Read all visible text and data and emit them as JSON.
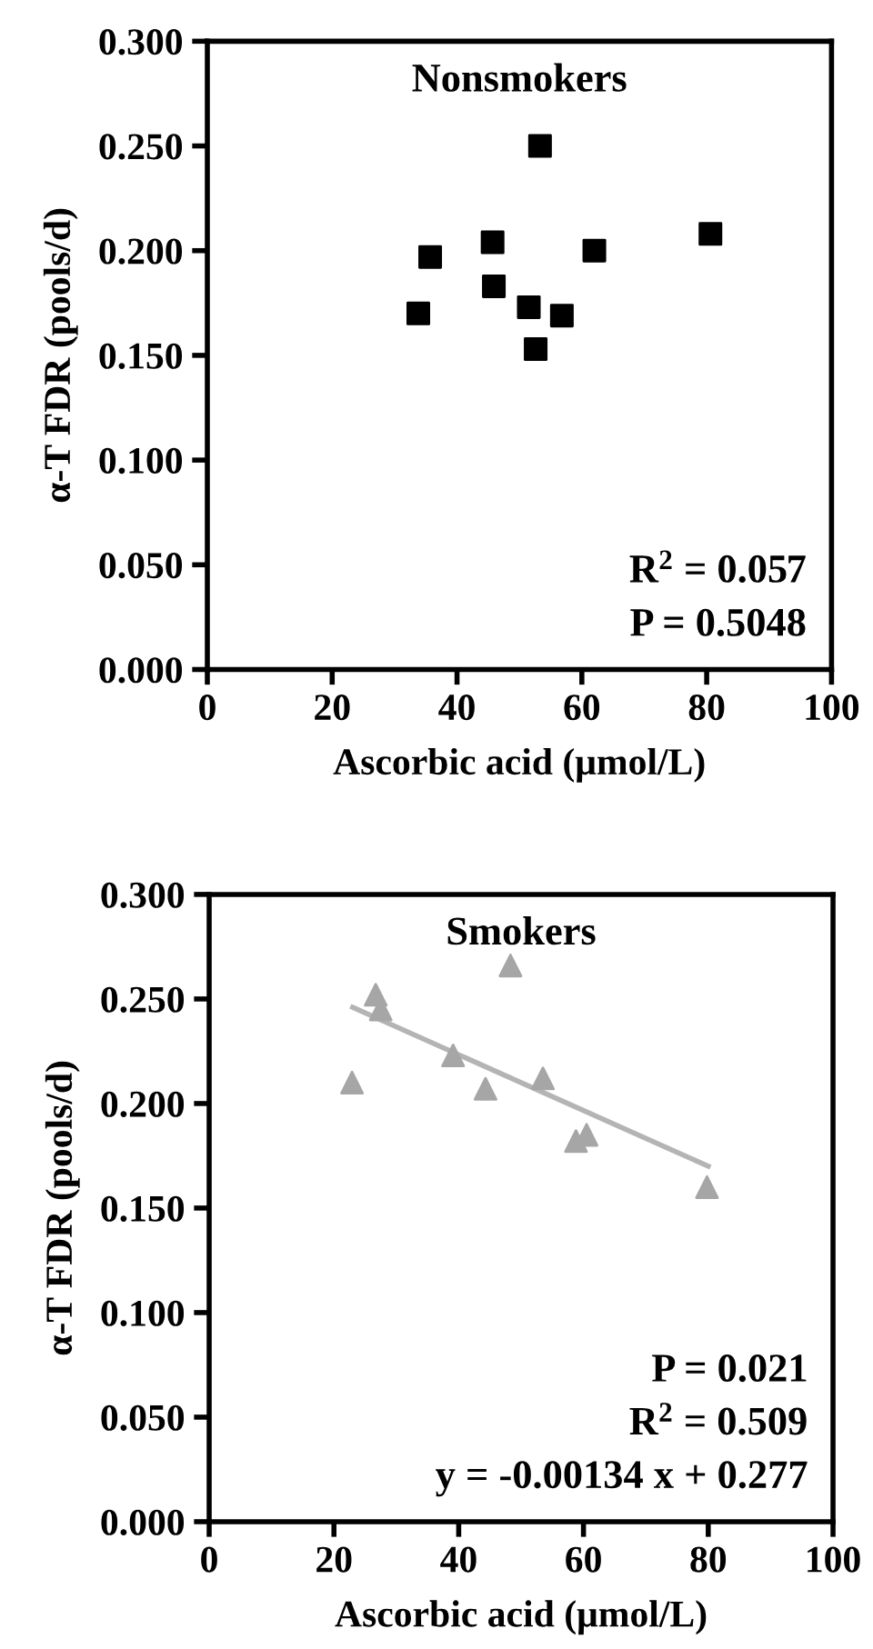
{
  "chart_data": [
    {
      "type": "scatter",
      "title": "Nonsmokers",
      "xlabel": "Ascorbic acid (μmol/L)",
      "ylabel": "α-T FDR (pools/d)",
      "grid": false,
      "legend": false,
      "xlim": [
        0,
        100
      ],
      "xticks": [
        0,
        20,
        40,
        60,
        80,
        100
      ],
      "ylim": [
        0,
        0.3
      ],
      "yticks": [
        {
          "value": 0,
          "label": "0.000"
        },
        {
          "value": 0.05,
          "label": "0.050"
        },
        {
          "value": 0.1,
          "label": "0.100"
        },
        {
          "value": 0.15,
          "label": "0.150"
        },
        {
          "value": 0.2,
          "label": "0.200"
        },
        {
          "value": 0.25,
          "label": "0.250"
        },
        {
          "value": 0.3,
          "label": "0.300"
        }
      ],
      "series": [
        {
          "marker": "square",
          "color": "#000000",
          "x": [
            33.8,
            35.7,
            45.7,
            45.9,
            51.5,
            52.6,
            53.3,
            56.8,
            62.0,
            80.6
          ],
          "values": [
            0.17,
            0.197,
            0.204,
            0.183,
            0.173,
            0.153,
            0.25,
            0.169,
            0.2,
            0.208
          ]
        }
      ],
      "annotations": [
        "R$^{2}$ = 0.057",
        "P = 0.5048"
      ]
    },
    {
      "type": "scatter",
      "title": "Smokers",
      "xlabel": "Ascorbic acid (μmol/L)",
      "ylabel": "α-T FDR (pools/d)",
      "grid": false,
      "legend": false,
      "xlim": [
        0,
        100
      ],
      "xticks": [
        0,
        20,
        40,
        60,
        80,
        100
      ],
      "ylim": [
        0,
        0.3
      ],
      "yticks": [
        {
          "value": 0,
          "label": "0.000"
        },
        {
          "value": 0.05,
          "label": "0.050"
        },
        {
          "value": 0.1,
          "label": "0.100"
        },
        {
          "value": 0.15,
          "label": "0.150"
        },
        {
          "value": 0.2,
          "label": "0.200"
        },
        {
          "value": 0.25,
          "label": "0.250"
        },
        {
          "value": 0.3,
          "label": "0.300"
        }
      ],
      "series": [
        {
          "marker": "triangle",
          "color": "#a6a6a6",
          "x": [
            22.9,
            26.7,
            27.5,
            39.1,
            44.3,
            48.3,
            53.5,
            58.8,
            60.5,
            79.8
          ],
          "values": [
            0.21,
            0.252,
            0.245,
            0.223,
            0.207,
            0.266,
            0.212,
            0.182,
            0.185,
            0.16
          ]
        },
        {
          "type": "line",
          "marker": "none",
          "color": "#b4b4b4",
          "x": [
            23,
            80
          ],
          "values": [
            0.246,
            0.17
          ]
        }
      ],
      "annotations": [
        "P = 0.021",
        "R$^{2}$ = 0.509",
        "y = -0.00134 x + 0.277"
      ]
    }
  ]
}
